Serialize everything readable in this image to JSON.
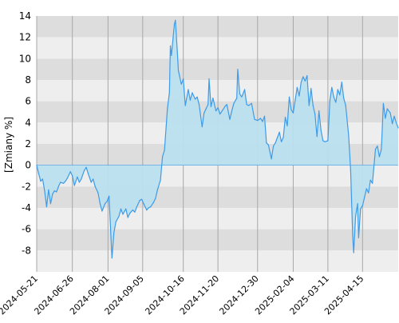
{
  "chart_data": {
    "type": "area",
    "title": "",
    "xlabel": "",
    "ylabel": "[Zmiany %]",
    "ylim": [
      -10,
      14
    ],
    "y_ticks": [
      "14",
      "12",
      "10",
      "8",
      "6",
      "4",
      "2",
      "0",
      "-2",
      "-4",
      "-6",
      "-8"
    ],
    "x_tick_labels": [
      "2024-05-21",
      "2024-06-26",
      "2024-08-01",
      "2024-09-05",
      "2024-10-16",
      "2024-11-20",
      "2024-12-30",
      "2025-02-04",
      "2025-03-11",
      "2025-04-15"
    ],
    "x_range": [
      "2024-05-21",
      "2025-05-21"
    ],
    "grid": true,
    "band_colors": [
      "#dddddd",
      "#eeeeee"
    ],
    "line_color": "#3d9be9",
    "fill_color": "#b9dfee",
    "series": [
      {
        "values": [
          [
            "2024-05-21",
            0.0
          ],
          [
            "2024-05-23",
            -0.8
          ],
          [
            "2024-05-25",
            -1.5
          ],
          [
            "2024-05-27",
            -1.3
          ],
          [
            "2024-05-29",
            -2.4
          ],
          [
            "2024-05-31",
            -3.9
          ],
          [
            "2024-06-02",
            -2.3
          ],
          [
            "2024-06-04",
            -3.6
          ],
          [
            "2024-06-06",
            -2.7
          ],
          [
            "2024-06-08",
            -2.4
          ],
          [
            "2024-06-10",
            -2.5
          ],
          [
            "2024-06-12",
            -2.0
          ],
          [
            "2024-06-14",
            -1.6
          ],
          [
            "2024-06-17",
            -1.7
          ],
          [
            "2024-06-19",
            -1.5
          ],
          [
            "2024-06-21",
            -1.2
          ],
          [
            "2024-06-24",
            -0.6
          ],
          [
            "2024-06-26",
            -1.0
          ],
          [
            "2024-06-28",
            -1.9
          ],
          [
            "2024-07-01",
            -1.1
          ],
          [
            "2024-07-03",
            -1.6
          ],
          [
            "2024-07-05",
            -1.3
          ],
          [
            "2024-07-08",
            -0.5
          ],
          [
            "2024-07-10",
            -0.2
          ],
          [
            "2024-07-12",
            -0.8
          ],
          [
            "2024-07-15",
            -1.6
          ],
          [
            "2024-07-17",
            -1.3
          ],
          [
            "2024-07-19",
            -2.0
          ],
          [
            "2024-07-22",
            -2.6
          ],
          [
            "2024-07-24",
            -3.6
          ],
          [
            "2024-07-26",
            -4.3
          ],
          [
            "2024-07-29",
            -3.6
          ],
          [
            "2024-07-31",
            -3.4
          ],
          [
            "2024-08-02",
            -2.9
          ],
          [
            "2024-08-05",
            -8.7
          ],
          [
            "2024-08-07",
            -6.3
          ],
          [
            "2024-08-09",
            -5.3
          ],
          [
            "2024-08-12",
            -4.8
          ],
          [
            "2024-08-14",
            -4.1
          ],
          [
            "2024-08-16",
            -4.6
          ],
          [
            "2024-08-19",
            -4.1
          ],
          [
            "2024-08-21",
            -4.9
          ],
          [
            "2024-08-23",
            -4.5
          ],
          [
            "2024-08-26",
            -4.2
          ],
          [
            "2024-08-28",
            -4.4
          ],
          [
            "2024-08-30",
            -3.9
          ],
          [
            "2024-09-02",
            -3.3
          ],
          [
            "2024-09-04",
            -3.2
          ],
          [
            "2024-09-06",
            -3.6
          ],
          [
            "2024-09-09",
            -4.2
          ],
          [
            "2024-09-11",
            -4.0
          ],
          [
            "2024-09-13",
            -3.9
          ],
          [
            "2024-09-16",
            -3.5
          ],
          [
            "2024-09-18",
            -3.1
          ],
          [
            "2024-09-20",
            -2.3
          ],
          [
            "2024-09-23",
            -1.4
          ],
          [
            "2024-09-25",
            0.8
          ],
          [
            "2024-09-27",
            1.4
          ],
          [
            "2024-09-30",
            5.3
          ],
          [
            "2024-10-02",
            6.8
          ],
          [
            "2024-10-03",
            11.2
          ],
          [
            "2024-10-04",
            10.3
          ],
          [
            "2024-10-07",
            13.2
          ],
          [
            "2024-10-08",
            13.6
          ],
          [
            "2024-10-10",
            10.7
          ],
          [
            "2024-10-11",
            8.9
          ],
          [
            "2024-10-14",
            7.6
          ],
          [
            "2024-10-16",
            8.1
          ],
          [
            "2024-10-18",
            5.6
          ],
          [
            "2024-10-21",
            7.1
          ],
          [
            "2024-10-23",
            6.1
          ],
          [
            "2024-10-25",
            6.8
          ],
          [
            "2024-10-28",
            6.2
          ],
          [
            "2024-10-30",
            6.4
          ],
          [
            "2024-11-01",
            5.7
          ],
          [
            "2024-11-04",
            3.6
          ],
          [
            "2024-11-06",
            4.9
          ],
          [
            "2024-11-08",
            5.3
          ],
          [
            "2024-11-10",
            5.7
          ],
          [
            "2024-11-11",
            8.1
          ],
          [
            "2024-11-13",
            5.5
          ],
          [
            "2024-11-15",
            6.3
          ],
          [
            "2024-11-18",
            5.1
          ],
          [
            "2024-11-20",
            5.4
          ],
          [
            "2024-11-22",
            4.8
          ],
          [
            "2024-11-25",
            5.2
          ],
          [
            "2024-11-27",
            5.5
          ],
          [
            "2024-11-29",
            5.7
          ],
          [
            "2024-12-02",
            4.3
          ],
          [
            "2024-12-04",
            5.1
          ],
          [
            "2024-12-06",
            5.8
          ],
          [
            "2024-12-09",
            6.3
          ],
          [
            "2024-12-10",
            9.0
          ],
          [
            "2024-12-12",
            6.7
          ],
          [
            "2024-12-14",
            6.4
          ],
          [
            "2024-12-17",
            7.1
          ],
          [
            "2024-12-19",
            5.7
          ],
          [
            "2024-12-21",
            5.6
          ],
          [
            "2024-12-24",
            5.8
          ],
          [
            "2024-12-27",
            4.3
          ],
          [
            "2024-12-30",
            4.2
          ],
          [
            "2025-01-02",
            4.4
          ],
          [
            "2025-01-04",
            4.1
          ],
          [
            "2025-01-06",
            4.6
          ],
          [
            "2025-01-08",
            2.1
          ],
          [
            "2025-01-10",
            1.9
          ],
          [
            "2025-01-13",
            0.6
          ],
          [
            "2025-01-15",
            1.8
          ],
          [
            "2025-01-17",
            2.1
          ],
          [
            "2025-01-19",
            2.6
          ],
          [
            "2025-01-21",
            3.1
          ],
          [
            "2025-01-23",
            2.2
          ],
          [
            "2025-01-25",
            2.6
          ],
          [
            "2025-01-27",
            4.5
          ],
          [
            "2025-01-29",
            3.7
          ],
          [
            "2025-01-31",
            6.4
          ],
          [
            "2025-02-02",
            5.2
          ],
          [
            "2025-02-04",
            4.9
          ],
          [
            "2025-02-06",
            6.1
          ],
          [
            "2025-02-08",
            7.3
          ],
          [
            "2025-02-10",
            6.5
          ],
          [
            "2025-02-12",
            7.8
          ],
          [
            "2025-02-14",
            8.3
          ],
          [
            "2025-02-16",
            7.9
          ],
          [
            "2025-02-18",
            8.4
          ],
          [
            "2025-02-20",
            5.6
          ],
          [
            "2025-02-22",
            7.2
          ],
          [
            "2025-02-24",
            5.6
          ],
          [
            "2025-02-26",
            4.8
          ],
          [
            "2025-02-28",
            2.7
          ],
          [
            "2025-03-02",
            5.1
          ],
          [
            "2025-03-04",
            3.3
          ],
          [
            "2025-03-06",
            2.3
          ],
          [
            "2025-03-08",
            2.2
          ],
          [
            "2025-03-11",
            2.3
          ],
          [
            "2025-03-13",
            6.1
          ],
          [
            "2025-03-15",
            7.3
          ],
          [
            "2025-03-17",
            6.4
          ],
          [
            "2025-03-19",
            5.9
          ],
          [
            "2025-03-21",
            7.1
          ],
          [
            "2025-03-23",
            6.6
          ],
          [
            "2025-03-25",
            7.8
          ],
          [
            "2025-03-27",
            6.3
          ],
          [
            "2025-03-29",
            5.6
          ],
          [
            "2025-04-01",
            2.8
          ],
          [
            "2025-04-03",
            -0.5
          ],
          [
            "2025-04-05",
            -6.5
          ],
          [
            "2025-04-06",
            -8.2
          ],
          [
            "2025-04-08",
            -4.8
          ],
          [
            "2025-04-10",
            -3.6
          ],
          [
            "2025-04-11",
            -6.8
          ],
          [
            "2025-04-13",
            -4.1
          ],
          [
            "2025-04-15",
            -3.8
          ],
          [
            "2025-04-17",
            -3.0
          ],
          [
            "2025-04-19",
            -2.2
          ],
          [
            "2025-04-21",
            -2.6
          ],
          [
            "2025-04-23",
            -1.4
          ],
          [
            "2025-04-25",
            -1.7
          ],
          [
            "2025-04-28",
            1.5
          ],
          [
            "2025-04-30",
            1.8
          ],
          [
            "2025-05-02",
            0.8
          ],
          [
            "2025-05-04",
            1.5
          ],
          [
            "2025-05-06",
            5.8
          ],
          [
            "2025-05-08",
            4.4
          ],
          [
            "2025-05-10",
            5.3
          ],
          [
            "2025-05-13",
            4.9
          ],
          [
            "2025-05-15",
            3.9
          ],
          [
            "2025-05-17",
            4.6
          ],
          [
            "2025-05-19",
            4.0
          ],
          [
            "2025-05-21",
            3.5
          ]
        ]
      }
    ]
  }
}
